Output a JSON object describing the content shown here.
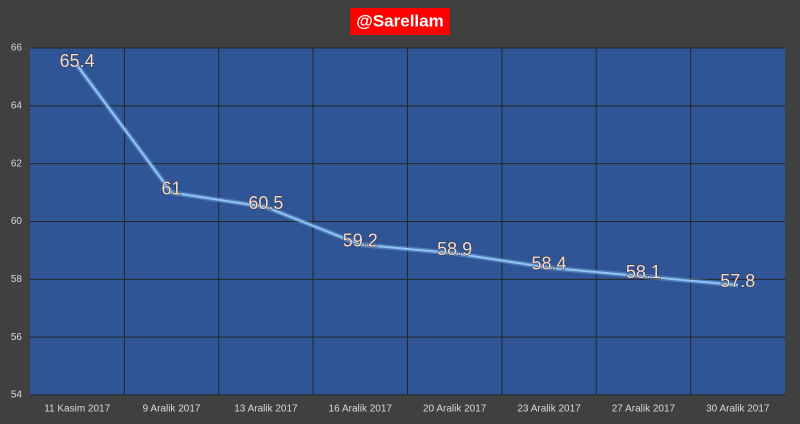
{
  "chart_data": {
    "type": "line",
    "title": "@Sarellam",
    "categories": [
      "11 Kasim 2017",
      "9 Aralik 2017",
      "13 Aralik 2017",
      "16 Aralik 2017",
      "20 Aralik 2017",
      "23 Aralik 2017",
      "27 Aralik 2017",
      "30 Aralik 2017"
    ],
    "values": [
      65.4,
      61,
      60.5,
      59.2,
      58.9,
      58.4,
      58.1,
      57.8
    ],
    "color": "#8fc6f5",
    "ylim": [
      54,
      66
    ],
    "yticks": [
      54,
      56,
      58,
      60,
      62,
      64,
      66
    ],
    "grid": true
  }
}
